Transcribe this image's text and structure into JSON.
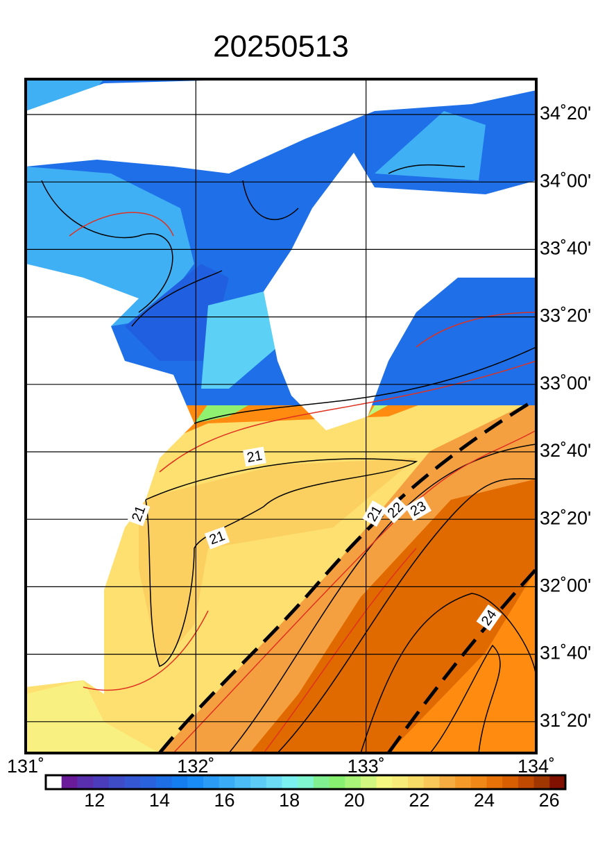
{
  "title": "20250513",
  "map": {
    "lon_labels": [
      "131˚",
      "132˚",
      "133˚",
      "134˚"
    ],
    "lat_labels": [
      "34˚20'",
      "34˚00'",
      "33˚40'",
      "33˚20'",
      "33˚00'",
      "32˚40'",
      "32˚20'",
      "32˚00'",
      "31˚40'",
      "31˚20'"
    ],
    "contour_labels": [
      "21",
      "21",
      "21",
      "21",
      "22",
      "23",
      "24"
    ]
  },
  "colorbar": {
    "range": [
      10.5,
      26.5
    ],
    "ticks": [
      12,
      14,
      16,
      18,
      20,
      22,
      24,
      26
    ],
    "colors": [
      "#ffffff",
      "#6a1b9a",
      "#5a2fae",
      "#4b3cbc",
      "#3f4cc8",
      "#3557d4",
      "#2a62de",
      "#1e6fe6",
      "#147df0",
      "#1a8cf6",
      "#2a9cf6",
      "#3aacf6",
      "#4cbcf6",
      "#5ccbf6",
      "#6cdcf6",
      "#7af0f0",
      "#7ff5d0",
      "#80f090",
      "#88f070",
      "#a8f478",
      "#d0f880",
      "#f4f880",
      "#f8ec78",
      "#f8dc68",
      "#f8c858",
      "#f5ac40",
      "#f59a28",
      "#f08818",
      "#e87208",
      "#d85e00",
      "#c04a00",
      "#a03600",
      "#801000"
    ]
  }
}
